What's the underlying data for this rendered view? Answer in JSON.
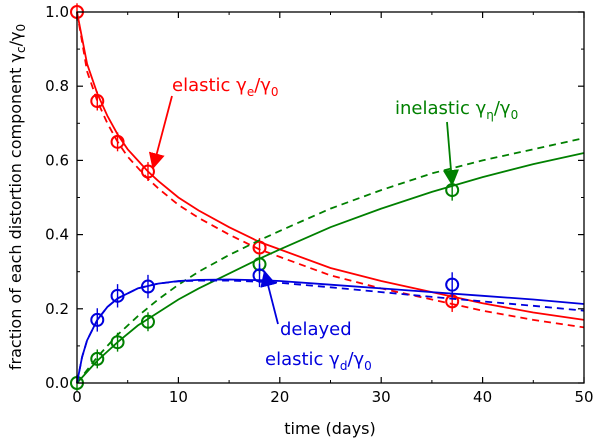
{
  "chart_data": {
    "type": "line",
    "xlabel": "time (days)",
    "ylabel": "fraction of each distortion component γc/γ0",
    "xlim": [
      0,
      50
    ],
    "ylim": [
      0,
      1.0
    ],
    "x_ticks": [
      0,
      10,
      20,
      30,
      40,
      50
    ],
    "y_ticks": [
      0.0,
      0.2,
      0.4,
      0.6,
      0.8,
      1.0
    ],
    "y_tick_labels": [
      "0.0",
      "0.2",
      "0.4",
      "0.6",
      "0.8",
      "1.0"
    ],
    "grid": false,
    "legend": "none",
    "series": [
      {
        "name": "elastic γe/γ0",
        "color": "#ff0000",
        "points": [
          {
            "x": 0,
            "y": 1.0,
            "err": 0.01
          },
          {
            "x": 2,
            "y": 0.76,
            "err": 0.012
          },
          {
            "x": 4,
            "y": 0.65,
            "err": 0.012
          },
          {
            "x": 7,
            "y": 0.57,
            "err": 0.012
          },
          {
            "x": 18,
            "y": 0.365,
            "err": 0.012
          },
          {
            "x": 37,
            "y": 0.22,
            "err": 0.015
          }
        ],
        "solid_fit": [
          [
            0,
            1.0
          ],
          [
            1,
            0.86
          ],
          [
            2,
            0.78
          ],
          [
            3,
            0.72
          ],
          [
            4,
            0.67
          ],
          [
            5,
            0.63
          ],
          [
            6,
            0.6
          ],
          [
            7,
            0.57
          ],
          [
            8,
            0.545
          ],
          [
            10,
            0.5
          ],
          [
            12,
            0.465
          ],
          [
            15,
            0.42
          ],
          [
            18,
            0.38
          ],
          [
            20,
            0.36
          ],
          [
            25,
            0.31
          ],
          [
            30,
            0.275
          ],
          [
            35,
            0.245
          ],
          [
            40,
            0.215
          ],
          [
            45,
            0.19
          ],
          [
            50,
            0.17
          ]
        ],
        "dashed_fit": [
          [
            0,
            1.0
          ],
          [
            1,
            0.84
          ],
          [
            2,
            0.76
          ],
          [
            3,
            0.7
          ],
          [
            4,
            0.65
          ],
          [
            5,
            0.61
          ],
          [
            6,
            0.58
          ],
          [
            7,
            0.55
          ],
          [
            8,
            0.525
          ],
          [
            10,
            0.48
          ],
          [
            12,
            0.445
          ],
          [
            15,
            0.4
          ],
          [
            18,
            0.36
          ],
          [
            20,
            0.34
          ],
          [
            25,
            0.29
          ],
          [
            30,
            0.255
          ],
          [
            35,
            0.225
          ],
          [
            40,
            0.195
          ],
          [
            45,
            0.17
          ],
          [
            50,
            0.15
          ]
        ]
      },
      {
        "name": "inelastic γη/γ0",
        "color": "#008000",
        "points": [
          {
            "x": 0,
            "y": 0.0,
            "err": 0.008
          },
          {
            "x": 2,
            "y": 0.065,
            "err": 0.012
          },
          {
            "x": 4,
            "y": 0.11,
            "err": 0.012
          },
          {
            "x": 7,
            "y": 0.165,
            "err": 0.012
          },
          {
            "x": 18,
            "y": 0.32,
            "err": 0.012
          },
          {
            "x": 37,
            "y": 0.52,
            "err": 0.015
          }
        ],
        "solid_fit": [
          [
            0,
            0.0
          ],
          [
            1,
            0.03
          ],
          [
            2,
            0.06
          ],
          [
            3,
            0.085
          ],
          [
            4,
            0.11
          ],
          [
            6,
            0.155
          ],
          [
            8,
            0.19
          ],
          [
            10,
            0.225
          ],
          [
            12,
            0.255
          ],
          [
            15,
            0.295
          ],
          [
            18,
            0.335
          ],
          [
            20,
            0.36
          ],
          [
            25,
            0.42
          ],
          [
            30,
            0.47
          ],
          [
            35,
            0.515
          ],
          [
            40,
            0.555
          ],
          [
            45,
            0.59
          ],
          [
            50,
            0.62
          ]
        ],
        "dashed_fit": [
          [
            0,
            0.0
          ],
          [
            1,
            0.035
          ],
          [
            2,
            0.07
          ],
          [
            3,
            0.1
          ],
          [
            4,
            0.13
          ],
          [
            6,
            0.18
          ],
          [
            8,
            0.225
          ],
          [
            10,
            0.265
          ],
          [
            12,
            0.3
          ],
          [
            15,
            0.345
          ],
          [
            18,
            0.385
          ],
          [
            20,
            0.41
          ],
          [
            25,
            0.47
          ],
          [
            30,
            0.52
          ],
          [
            35,
            0.565
          ],
          [
            40,
            0.6
          ],
          [
            45,
            0.63
          ],
          [
            50,
            0.66
          ]
        ]
      },
      {
        "name": "delayed elastic γd/γ0",
        "color": "#0000dd",
        "points": [
          {
            "x": 2,
            "y": 0.17,
            "err": 0.018
          },
          {
            "x": 4,
            "y": 0.235,
            "err": 0.018
          },
          {
            "x": 7,
            "y": 0.26,
            "err": 0.018
          },
          {
            "x": 18,
            "y": 0.29,
            "err": 0.018
          },
          {
            "x": 37,
            "y": 0.265,
            "err": 0.02
          }
        ],
        "solid_fit": [
          [
            0,
            0.0
          ],
          [
            0.5,
            0.07
          ],
          [
            1,
            0.115
          ],
          [
            2,
            0.17
          ],
          [
            3,
            0.205
          ],
          [
            4,
            0.228
          ],
          [
            6,
            0.255
          ],
          [
            8,
            0.268
          ],
          [
            10,
            0.275
          ],
          [
            12,
            0.278
          ],
          [
            15,
            0.279
          ],
          [
            18,
            0.277
          ],
          [
            20,
            0.275
          ],
          [
            25,
            0.265
          ],
          [
            30,
            0.255
          ],
          [
            35,
            0.245
          ],
          [
            40,
            0.235
          ],
          [
            45,
            0.225
          ],
          [
            50,
            0.213
          ]
        ],
        "dashed_fit": [
          [
            0,
            0.0
          ],
          [
            0.5,
            0.07
          ],
          [
            1,
            0.115
          ],
          [
            2,
            0.17
          ],
          [
            3,
            0.205
          ],
          [
            4,
            0.228
          ],
          [
            6,
            0.255
          ],
          [
            8,
            0.268
          ],
          [
            10,
            0.274
          ],
          [
            12,
            0.276
          ],
          [
            15,
            0.276
          ],
          [
            18,
            0.273
          ],
          [
            20,
            0.27
          ],
          [
            25,
            0.258
          ],
          [
            30,
            0.245
          ],
          [
            35,
            0.232
          ],
          [
            40,
            0.22
          ],
          [
            45,
            0.208
          ],
          [
            50,
            0.195
          ]
        ]
      }
    ],
    "annotations": [
      {
        "id": "elastic",
        "text": "elastic γ",
        "sub": "e",
        "tail": "/γ",
        "tail_sub": "0",
        "color": "#ff0000",
        "arrow_to": [
          7.5,
          0.58
        ]
      },
      {
        "id": "inelastic",
        "text": "inelastic γ",
        "sub": "η",
        "tail": "/γ",
        "tail_sub": "0",
        "color": "#008000",
        "arrow_to": [
          37,
          0.535
        ]
      },
      {
        "id": "delayed1",
        "text": "delayed",
        "color": "#0000dd",
        "arrow_to": [
          18.5,
          0.3
        ]
      },
      {
        "id": "delayed2",
        "text": "elastic γ",
        "sub": "d",
        "tail": "/γ",
        "tail_sub": "0",
        "color": "#0000dd"
      }
    ]
  }
}
